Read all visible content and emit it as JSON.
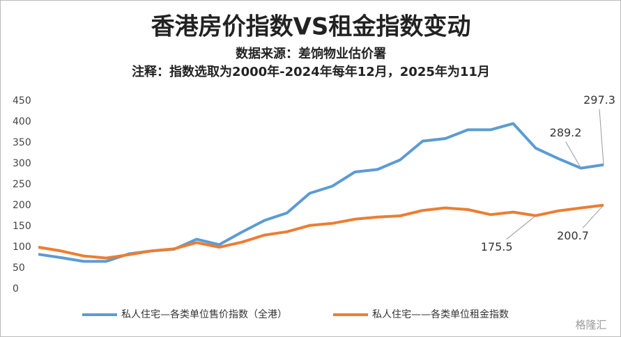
{
  "chart_data": {
    "type": "line",
    "title": "香港房价指数VS租金指数变动",
    "subtitle": "数据来源：差饷物业估价署",
    "note": "注释：指数选取为2000年-2024年每年12月，2025年为11月",
    "categories": [
      null,
      null,
      null,
      null,
      null,
      null,
      null,
      null,
      null,
      null,
      null,
      null,
      null,
      null,
      null,
      null,
      null,
      null,
      null,
      null,
      null,
      null,
      null,
      null,
      null,
      null
    ],
    "series": [
      {
        "name": "私人住宅—各类单位售价指数（全港）",
        "color": "#5b9bd5",
        "values": [
          83,
          75,
          66,
          66,
          84,
          91,
          95,
          119,
          106,
          136,
          164,
          182,
          229,
          246,
          280,
          286,
          309,
          354,
          360,
          381,
          381,
          396,
          337,
          312,
          289.2,
          297.3
        ],
        "value_labels": [
          null,
          null,
          null,
          null,
          null,
          null,
          null,
          null,
          null,
          null,
          null,
          null,
          null,
          null,
          null,
          null,
          null,
          null,
          null,
          null,
          null,
          null,
          null,
          null,
          "289.2",
          "297.3"
        ]
      },
      {
        "name": "私人住宅——各类单位租金指数",
        "color": "#ed7d31",
        "values": [
          100,
          91,
          79,
          74,
          82,
          91,
          96,
          111,
          100,
          112,
          129,
          137,
          152,
          157,
          167,
          172,
          175,
          188,
          194,
          190,
          178,
          184,
          175.5,
          187,
          194,
          200.7
        ],
        "value_labels": [
          null,
          null,
          null,
          null,
          null,
          null,
          null,
          null,
          null,
          null,
          null,
          null,
          null,
          null,
          null,
          null,
          null,
          null,
          null,
          null,
          null,
          null,
          "175.5",
          null,
          null,
          "200.7"
        ]
      }
    ],
    "ylim": [
      0,
      450
    ],
    "yticks": [
      0,
      50,
      100,
      150,
      200,
      250,
      300,
      350,
      400,
      450
    ],
    "grid": false,
    "legend": "bottom",
    "watermark": "格隆汇"
  }
}
